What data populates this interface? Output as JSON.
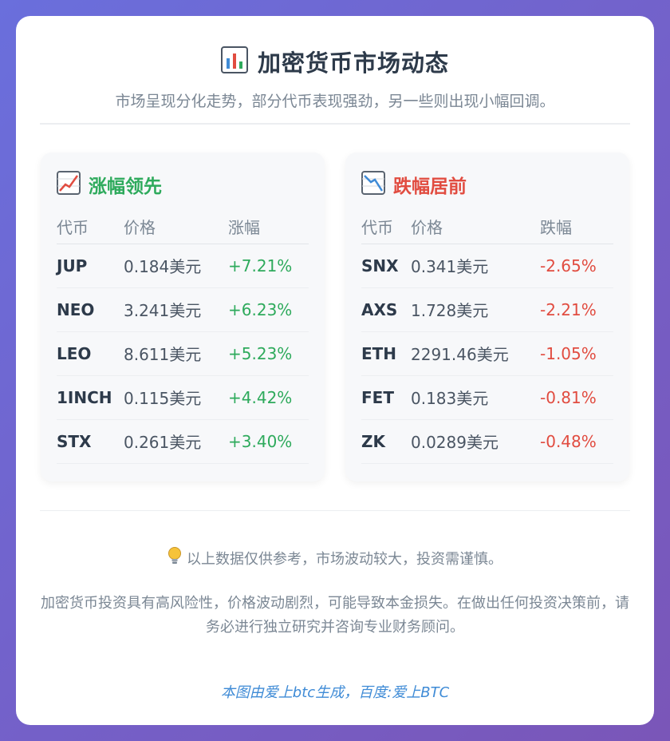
{
  "header": {
    "icon": "bar-chart-icon",
    "title": "加密货币市场动态",
    "subtitle": "市场呈现分化走势，部分代币表现强劲，另一些则出现小幅回调。"
  },
  "gainers": {
    "icon": "chart-increasing-icon",
    "title": "涨幅领先",
    "columns": [
      "代币",
      "价格",
      "涨幅"
    ],
    "rows": [
      {
        "symbol": "JUP",
        "price": "0.184美元",
        "change": "+7.21%"
      },
      {
        "symbol": "NEO",
        "price": "3.241美元",
        "change": "+6.23%"
      },
      {
        "symbol": "LEO",
        "price": "8.611美元",
        "change": "+5.23%"
      },
      {
        "symbol": "1INCH",
        "price": "0.115美元",
        "change": "+4.42%"
      },
      {
        "symbol": "STX",
        "price": "0.261美元",
        "change": "+3.40%"
      }
    ]
  },
  "losers": {
    "icon": "chart-decreasing-icon",
    "title": "跌幅居前",
    "columns": [
      "代币",
      "价格",
      "跌幅"
    ],
    "rows": [
      {
        "symbol": "SNX",
        "price": "0.341美元",
        "change": "-2.65%"
      },
      {
        "symbol": "AXS",
        "price": "1.728美元",
        "change": "-2.21%"
      },
      {
        "symbol": "ETH",
        "price": "2291.46美元",
        "change": "-1.05%"
      },
      {
        "symbol": "FET",
        "price": "0.183美元",
        "change": "-0.81%"
      },
      {
        "symbol": "ZK",
        "price": "0.0289美元",
        "change": "-0.48%"
      }
    ]
  },
  "footer": {
    "note_icon": "lightbulb-icon",
    "note": "以上数据仅供参考，市场波动较大，投资需谨慎。",
    "disclaimer": "加密货币投资具有高风险性，价格波动剧烈，可能导致本金损失。在做出任何投资决策前，请务必进行独立研究并咨询专业财务顾问。",
    "credit": "本图由爱上btc生成，百度:爱上BTC"
  },
  "colors": {
    "up": "#2eaa5c",
    "down": "#e14c40",
    "credit": "#3f8bd6",
    "background_start": "#6a6fdc",
    "background_end": "#7a56b8"
  }
}
